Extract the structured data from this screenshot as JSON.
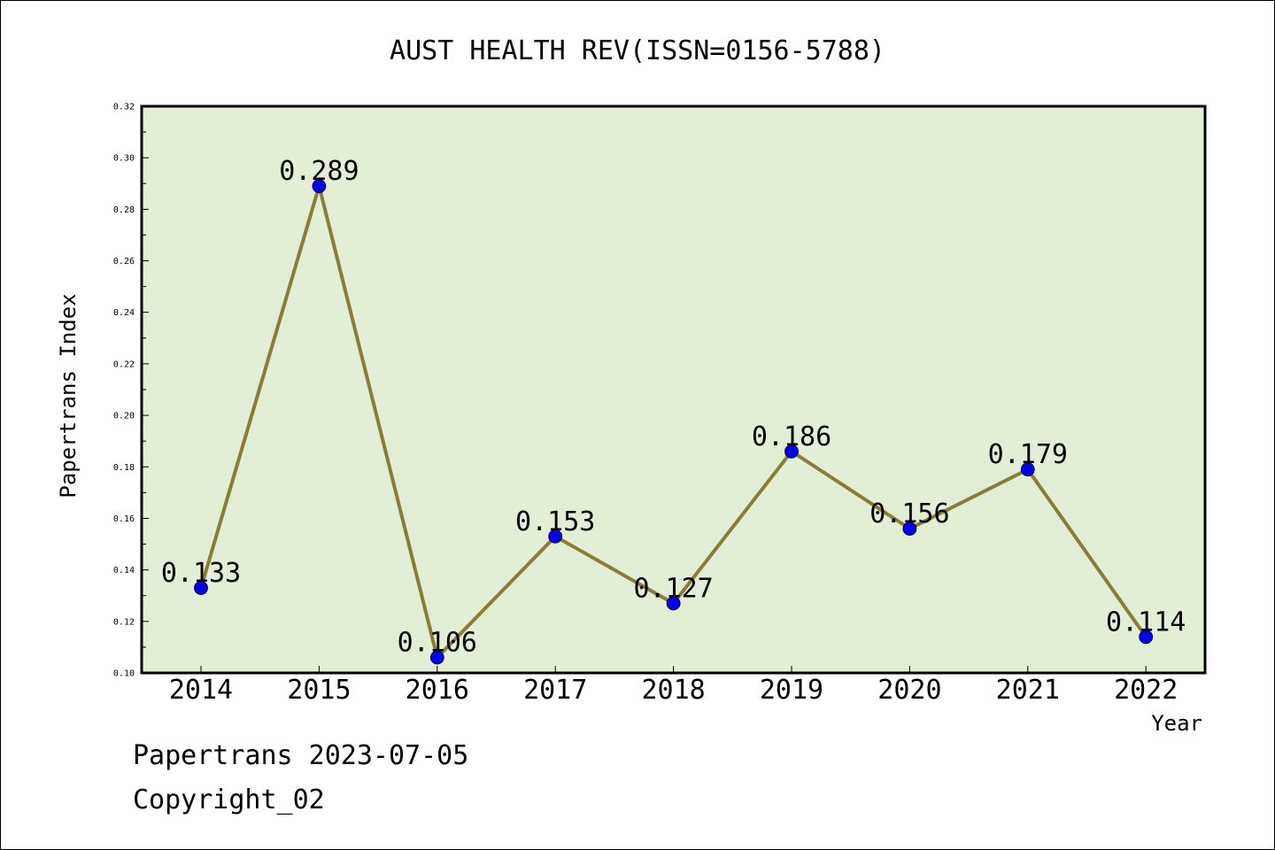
{
  "chart_data": {
    "type": "line",
    "title": "AUST HEALTH REV(ISSN=0156-5788)",
    "xlabel": "Year",
    "ylabel": "Papertrans Index",
    "x": [
      "2014",
      "2015",
      "2016",
      "2017",
      "2018",
      "2019",
      "2020",
      "2021",
      "2022"
    ],
    "values": [
      0.133,
      0.289,
      0.106,
      0.153,
      0.127,
      0.186,
      0.156,
      0.179,
      0.114
    ],
    "data_labels": [
      "0.133",
      "0.289",
      "0.106",
      "0.153",
      "0.127",
      "0.186",
      "0.156",
      "0.179",
      "0.114"
    ],
    "ylim": [
      0.1,
      0.32
    ],
    "yticks": [
      "0.10",
      "0.12",
      "0.14",
      "0.16",
      "0.18",
      "0.20",
      "0.22",
      "0.24",
      "0.26",
      "0.28",
      "0.30",
      "0.32"
    ],
    "grid": false,
    "legend": "none",
    "colors": {
      "plot_background": "#e2efd4",
      "line": "#8c7c35",
      "marker": "#0000ee"
    }
  },
  "footer": {
    "line1": "Papertrans 2023-07-05",
    "line2": "Copyright_02"
  }
}
